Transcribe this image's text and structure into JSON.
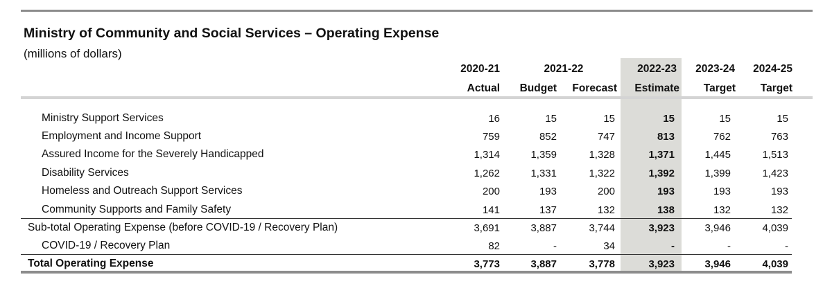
{
  "title": "Ministry of Community and Social Services – Operating Expense",
  "subtitle": "(millions of dollars)",
  "years": {
    "y2021": "2020-21",
    "y2122": "2021-22",
    "y2223": "2022-23",
    "y2324": "2023-24",
    "y2425": "2024-25"
  },
  "subheaders": [
    "Actual",
    "Budget",
    "Forecast",
    "Estimate",
    "Target",
    "Target"
  ],
  "rows": [
    {
      "label": "Ministry Support Services",
      "values": [
        "16",
        "15",
        "15",
        "15",
        "15",
        "15"
      ]
    },
    {
      "label": "Employment and Income Support",
      "values": [
        "759",
        "852",
        "747",
        "813",
        "762",
        "763"
      ]
    },
    {
      "label": "Assured Income for the Severely Handicapped",
      "values": [
        "1,314",
        "1,359",
        "1,328",
        "1,371",
        "1,445",
        "1,513"
      ]
    },
    {
      "label": "Disability Services",
      "values": [
        "1,262",
        "1,331",
        "1,322",
        "1,392",
        "1,399",
        "1,423"
      ]
    },
    {
      "label": "Homeless and Outreach Support Services",
      "values": [
        "200",
        "193",
        "200",
        "193",
        "193",
        "193"
      ]
    },
    {
      "label": "Community Supports and Family Safety",
      "values": [
        "141",
        "137",
        "132",
        "138",
        "132",
        "132"
      ]
    },
    {
      "label": "Sub-total Operating Expense (before COVID-19 / Recovery Plan)",
      "values": [
        "3,691",
        "3,887",
        "3,744",
        "3,923",
        "3,946",
        "4,039"
      ]
    },
    {
      "label": "COVID-19 / Recovery Plan",
      "values": [
        "82",
        "-",
        "34",
        "-",
        "-",
        "-"
      ]
    },
    {
      "label": "Total Operating Expense",
      "values": [
        "3,773",
        "3,887",
        "3,778",
        "3,923",
        "3,946",
        "4,039"
      ]
    }
  ]
}
